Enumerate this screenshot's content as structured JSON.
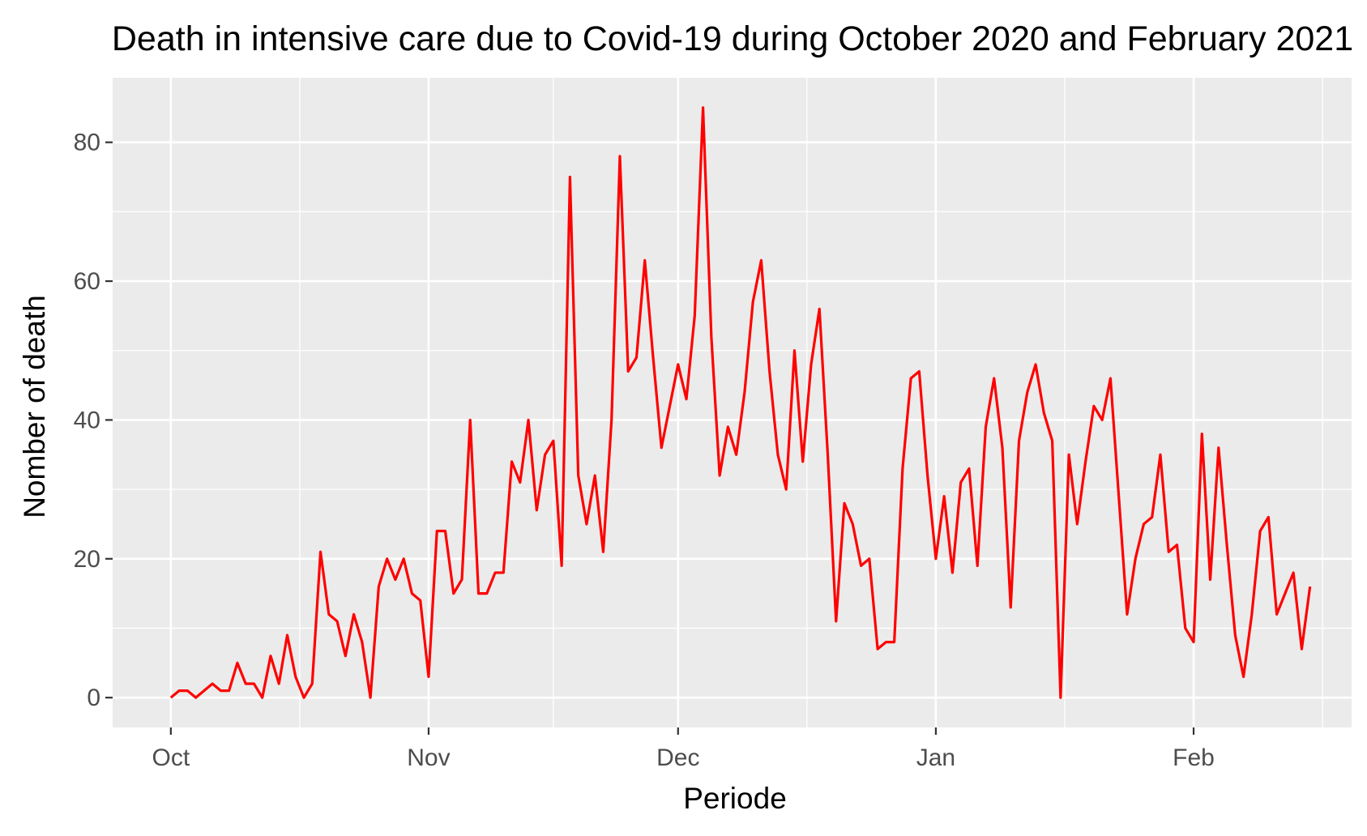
{
  "chart_data": {
    "type": "line",
    "title": "Death in intensive care due to Covid-19 during October 2020 and February 2021",
    "xlabel": "Periode",
    "ylabel": "Nomber of death",
    "x_ticks": [
      {
        "label": "Oct",
        "date": "2020-10-01"
      },
      {
        "label": "Nov",
        "date": "2020-11-01"
      },
      {
        "label": "Dec",
        "date": "2020-12-01"
      },
      {
        "label": "Jan",
        "date": "2021-01-01"
      },
      {
        "label": "Feb",
        "date": "2021-02-01"
      }
    ],
    "y_ticks": [
      0,
      20,
      40,
      60,
      80
    ],
    "xlim": [
      "2020-09-24",
      "2021-02-20"
    ],
    "ylim": [
      -4.3,
      89.3
    ],
    "grid": true,
    "legend": "none",
    "series": [
      {
        "color": "#ff0000",
        "start_date": "2020-10-01",
        "values": [
          0,
          1,
          1,
          0,
          1,
          2,
          1,
          1,
          5,
          2,
          2,
          0,
          6,
          2,
          9,
          3,
          0,
          2,
          21,
          12,
          11,
          6,
          12,
          8,
          0,
          16,
          20,
          17,
          20,
          15,
          14,
          3,
          24,
          24,
          15,
          17,
          40,
          15,
          15,
          18,
          18,
          34,
          31,
          40,
          27,
          35,
          37,
          19,
          75,
          32,
          25,
          32,
          21,
          40,
          78,
          47,
          49,
          63,
          49,
          36,
          42,
          48,
          43,
          55,
          85,
          52,
          32,
          39,
          35,
          44,
          57,
          63,
          47,
          35,
          30,
          50,
          34,
          48,
          56,
          35,
          11,
          28,
          25,
          19,
          20,
          7,
          8,
          8,
          33,
          46,
          47,
          32,
          20,
          29,
          18,
          31,
          33,
          19,
          39,
          46,
          36,
          13,
          37,
          44,
          48,
          41,
          37,
          0,
          35,
          25,
          34,
          42,
          40,
          46,
          29,
          12,
          20,
          25,
          26,
          35,
          21,
          22,
          10,
          8,
          38,
          17,
          36,
          22,
          9,
          3,
          12,
          24,
          26,
          12,
          15,
          18,
          7,
          16
        ]
      }
    ]
  },
  "colors": {
    "panel_background": "#ebebeb",
    "grid": "#ffffff",
    "line": "#ff0000",
    "tick_text": "#4d4d4d"
  }
}
